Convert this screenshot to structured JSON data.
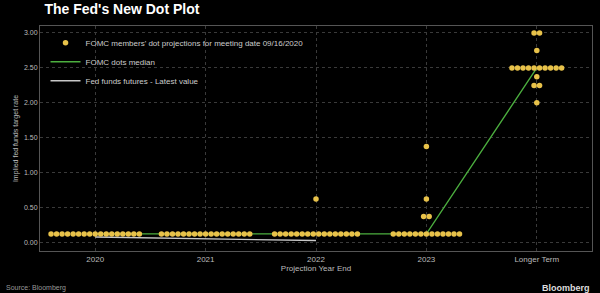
{
  "chart_data": {
    "type": "dot_plot",
    "title": "The Fed's New Dot Plot",
    "x_label": "Projection Year End",
    "y_label": "Implied fed funds target rate",
    "categories": [
      "2020",
      "2021",
      "2022",
      "2023",
      "Longer Term"
    ],
    "series": [
      {
        "name": "FOMC members' dot projections for meeting date 09/16/2020",
        "type": "scatter",
        "color": "#e8c24a",
        "marker": "circle",
        "values": [
          [
            0.125,
            0.125,
            0.125,
            0.125,
            0.125,
            0.125,
            0.125,
            0.125,
            0.125,
            0.125,
            0.125,
            0.125,
            0.125,
            0.125,
            0.125,
            0.125,
            0.125
          ],
          [
            0.125,
            0.125,
            0.125,
            0.125,
            0.125,
            0.125,
            0.125,
            0.125,
            0.125,
            0.125,
            0.125,
            0.125,
            0.125,
            0.125,
            0.125,
            0.125,
            0.125
          ],
          [
            0.125,
            0.125,
            0.125,
            0.125,
            0.125,
            0.125,
            0.125,
            0.125,
            0.125,
            0.125,
            0.125,
            0.125,
            0.125,
            0.125,
            0.125,
            0.125,
            0.625
          ],
          [
            0.125,
            0.125,
            0.125,
            0.125,
            0.125,
            0.125,
            0.125,
            0.125,
            0.125,
            0.125,
            0.125,
            0.125,
            0.125,
            0.375,
            0.375,
            0.625,
            1.375
          ],
          [
            2,
            2.25,
            2.25,
            2.375,
            2.5,
            2.5,
            2.5,
            2.5,
            2.5,
            2.5,
            2.5,
            2.5,
            2.5,
            2.5,
            2.75,
            3,
            3
          ]
        ]
      },
      {
        "name": "FOMC dots median",
        "type": "line",
        "color": "#4caf3f",
        "values": [
          0.125,
          0.125,
          0.125,
          0.125,
          2.5
        ]
      },
      {
        "name": "Fed funds futures - Latest value",
        "type": "line",
        "color": "#c8c8c8",
        "values": [
          0.08,
          0.06,
          0.03,
          null,
          null
        ]
      }
    ],
    "ylim": [
      -0.12,
      3.1
    ],
    "yticks": [
      {
        "value": 0,
        "label": "0.00"
      },
      {
        "value": 0.5,
        "label": "0.50"
      },
      {
        "value": 1,
        "label": "1.00"
      },
      {
        "value": 1.5,
        "label": "1.50"
      },
      {
        "value": 2,
        "label": "2.00"
      },
      {
        "value": 2.5,
        "label": "2.50"
      },
      {
        "value": 3,
        "label": "3.00"
      }
    ],
    "grid": true,
    "legend": "top-left",
    "source": "Source: Bloomberg",
    "credit": "Bloomberg"
  }
}
